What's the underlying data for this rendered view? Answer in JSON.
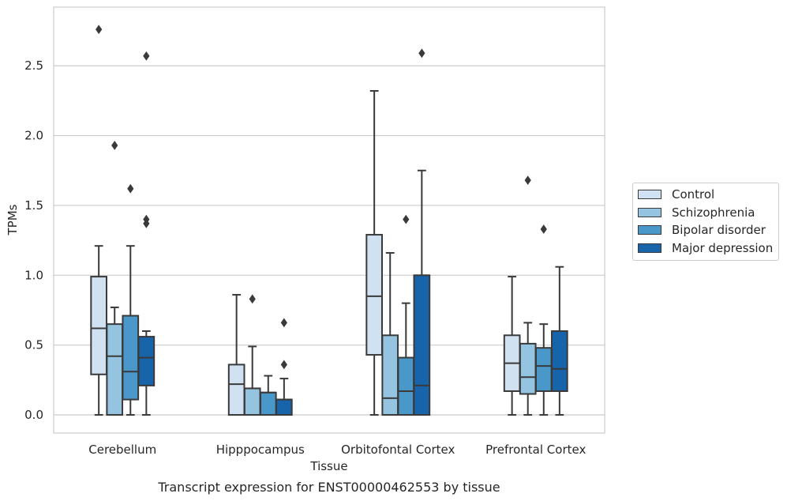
{
  "chart_data": {
    "type": "boxplot",
    "xlabel": "Tissue",
    "ylabel": "TPMs",
    "caption": "Transcript expression for ENST00000462553 by tissue",
    "ylim": [
      -0.13,
      2.92
    ],
    "yticks": [
      "0.0",
      "0.5",
      "1.0",
      "1.5",
      "2.0",
      "2.5"
    ],
    "grid": "horizontal",
    "legend_placement": "right",
    "categories": [
      "Cerebellum",
      "Hipppocampus",
      "Orbitofontal Cortex",
      "Prefrontal Cortex"
    ],
    "series": [
      {
        "name": "Control",
        "color": "#d0e1f2",
        "boxes": [
          {
            "whisker_low": 0,
            "q1": 0.29,
            "median": 0.62,
            "q3": 0.99,
            "whisker_high": 1.21,
            "outliers": [
              2.76
            ]
          },
          {
            "whisker_low": 0,
            "q1": 0,
            "median": 0.22,
            "q3": 0.36,
            "whisker_high": 0.86,
            "outliers": []
          },
          {
            "whisker_low": 0,
            "q1": 0.43,
            "median": 0.85,
            "q3": 1.29,
            "whisker_high": 2.32,
            "outliers": []
          },
          {
            "whisker_low": 0,
            "q1": 0.17,
            "median": 0.37,
            "q3": 0.57,
            "whisker_high": 0.99,
            "outliers": []
          }
        ]
      },
      {
        "name": "Schizophrenia",
        "color": "#94c4df",
        "boxes": [
          {
            "whisker_low": 0,
            "q1": 0,
            "median": 0.42,
            "q3": 0.65,
            "whisker_high": 0.77,
            "outliers": [
              1.93
            ]
          },
          {
            "whisker_low": 0,
            "q1": 0,
            "median": 0.19,
            "q3": 0.19,
            "whisker_high": 0.49,
            "outliers": [
              0.83
            ]
          },
          {
            "whisker_low": 0,
            "q1": 0,
            "median": 0.12,
            "q3": 0.57,
            "whisker_high": 1.16,
            "outliers": []
          },
          {
            "whisker_low": 0,
            "q1": 0.15,
            "median": 0.27,
            "q3": 0.51,
            "whisker_high": 0.66,
            "outliers": [
              1.68
            ]
          }
        ]
      },
      {
        "name": "Bipolar disorder",
        "color": "#4a98c9",
        "boxes": [
          {
            "whisker_low": 0,
            "q1": 0.11,
            "median": 0.31,
            "q3": 0.71,
            "whisker_high": 1.21,
            "outliers": [
              1.62
            ]
          },
          {
            "whisker_low": 0,
            "q1": 0,
            "median": 0.16,
            "q3": 0.16,
            "whisker_high": 0.28,
            "outliers": []
          },
          {
            "whisker_low": 0,
            "q1": 0,
            "median": 0.17,
            "q3": 0.41,
            "whisker_high": 0.8,
            "outliers": [
              1.4
            ]
          },
          {
            "whisker_low": 0,
            "q1": 0.17,
            "median": 0.35,
            "q3": 0.48,
            "whisker_high": 0.65,
            "outliers": [
              1.33
            ]
          }
        ]
      },
      {
        "name": "Major depression",
        "color": "#1764ab",
        "boxes": [
          {
            "whisker_low": 0,
            "q1": 0.21,
            "median": 0.41,
            "q3": 0.56,
            "whisker_high": 0.6,
            "outliers": [
              1.37,
              1.4,
              2.57
            ]
          },
          {
            "whisker_low": 0,
            "q1": 0,
            "median": 0.11,
            "q3": 0.11,
            "whisker_high": 0.26,
            "outliers": [
              0.36,
              0.66
            ]
          },
          {
            "whisker_low": 0,
            "q1": 0,
            "median": 0.21,
            "q3": 1.0,
            "whisker_high": 1.75,
            "outliers": [
              2.59
            ]
          },
          {
            "whisker_low": 0,
            "q1": 0.17,
            "median": 0.33,
            "q3": 0.6,
            "whisker_high": 1.06,
            "outliers": []
          }
        ]
      }
    ]
  }
}
